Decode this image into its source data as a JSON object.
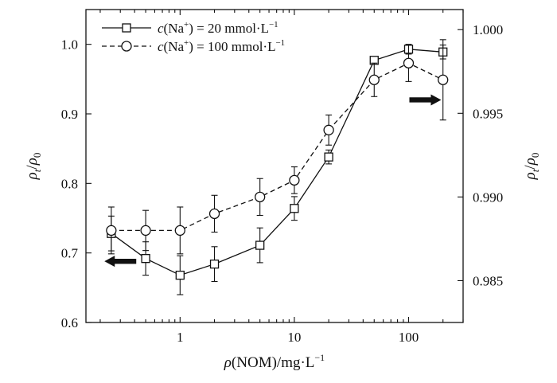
{
  "chart_data": {
    "type": "line",
    "x_scale": "log",
    "xlim": [
      0.15,
      300
    ],
    "x_ticks": [
      {
        "value": 1,
        "label": "1"
      },
      {
        "value": 10,
        "label": "10"
      },
      {
        "value": 100,
        "label": "100"
      }
    ],
    "xlabel": {
      "prefix": "ρ",
      "rest": "(NOM)/mg·L",
      "sup": "−1"
    },
    "ylabel_left": {
      "a": "ρ",
      "a_sub": "t",
      "slash": "/",
      "b": "ρ",
      "b_sub": "0"
    },
    "ylabel_right": {
      "a": "ρ",
      "a_sub": "t",
      "slash": "/",
      "b": "ρ",
      "b_sub": "0"
    },
    "ylim_left": [
      0.6,
      1.05
    ],
    "yticks_left": [
      "0.6",
      "0.7",
      "0.8",
      "0.9",
      "1.0"
    ],
    "ylim_right": [
      0.9825,
      1.0012
    ],
    "yticks_right": [
      "0.985",
      "0.990",
      "0.995",
      "1.000"
    ],
    "x": [
      0.25,
      0.5,
      1,
      2,
      5,
      10,
      20,
      50,
      100,
      200
    ],
    "series": [
      {
        "name": {
          "c": "c",
          "ion": "(Na",
          "sup": "+",
          "rest": ") = 20 mmol·L",
          "unit_sup": "−1"
        },
        "axis": "left",
        "marker": "square",
        "line": "solid",
        "values": [
          0.728,
          0.692,
          0.668,
          0.684,
          0.711,
          0.764,
          0.838,
          0.977,
          0.993,
          0.989
        ],
        "errors": [
          0.025,
          0.024,
          0.028,
          0.025,
          0.025,
          0.017,
          0.01,
          0.005,
          0.007,
          0.01
        ]
      },
      {
        "name": {
          "c": "c",
          "ion": "(Na",
          "sup": "+",
          "rest": ") = 100 mmol·L",
          "unit_sup": "−1"
        },
        "axis": "right",
        "marker": "circle",
        "line": "dashed",
        "values": [
          0.988,
          0.988,
          0.988,
          0.989,
          0.99,
          0.991,
          0.994,
          0.997,
          0.998,
          0.997
        ],
        "errors": [
          0.0014,
          0.0012,
          0.0014,
          0.0011,
          0.0011,
          0.0008,
          0.0009,
          0.001,
          0.0011,
          0.0024
        ]
      }
    ],
    "arrows": [
      {
        "series_index": 0,
        "direction": "left",
        "x": 0.3,
        "y": 0.688
      },
      {
        "series_index": 1,
        "direction": "right",
        "x": 140,
        "y": 0.9958
      }
    ],
    "legend_position": "top-left",
    "colors": {
      "ink": "#111111",
      "background": "#ffffff"
    }
  }
}
